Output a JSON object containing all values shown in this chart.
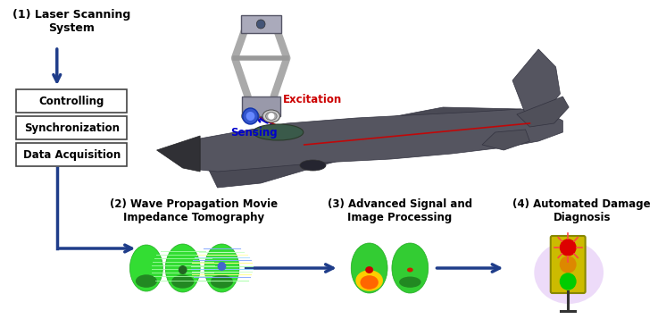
{
  "bg_color": "#ffffff",
  "box_labels": [
    "Controlling",
    "Synchronization",
    "Data Acquisition"
  ],
  "step1_label": "(1) Laser Scanning\nSystem",
  "step2_label": "(2) Wave Propagation Movie\nImpedance Tomography",
  "step3_label": "(3) Advanced Signal and\nImage Processing",
  "step4_label": "(4) Automated Damage\nDiagnosis",
  "excitation_label": "Excitation",
  "sensing_label": "Sensing",
  "arrow_color": "#1f3d8a",
  "excitation_color": "#cc0000",
  "sensing_color": "#0000cc",
  "box_edge_color": "#444444",
  "fig_width": 7.46,
  "fig_height": 3.76,
  "dpi": 100
}
